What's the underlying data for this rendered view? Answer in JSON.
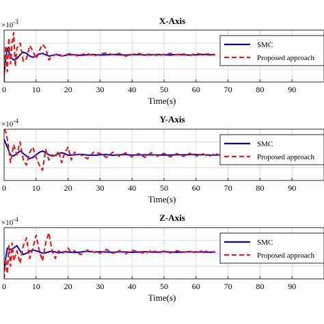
{
  "chart_data": [
    {
      "type": "line",
      "title": "X-Axis",
      "xlabel": "Time(s)",
      "exponent_label": "×10",
      "exponent_power": "-3",
      "xlim": [
        0,
        100
      ],
      "ylim": [
        -1,
        1
      ],
      "xticks": [
        0,
        10,
        20,
        30,
        40,
        50,
        60,
        70,
        80,
        90
      ],
      "grid": true,
      "legend_position": "top-right",
      "series": [
        {
          "name": "SMC",
          "color": "#0000cc",
          "style": "solid",
          "x": [
            0,
            0.5,
            1,
            1.5,
            2,
            3,
            4,
            5,
            6,
            7,
            8,
            9,
            10,
            11,
            12,
            13,
            14,
            15,
            16,
            17,
            18,
            19,
            20,
            22,
            24,
            26,
            28,
            30,
            32,
            34,
            36,
            38,
            40,
            42,
            44,
            46,
            48,
            50,
            52,
            54,
            56,
            58,
            60,
            62,
            64,
            66
          ],
          "y": [
            -0.8,
            -0.1,
            0.3,
            0.15,
            -0.05,
            -0.15,
            -0.1,
            0.05,
            0.15,
            0.1,
            0.0,
            -0.05,
            0.0,
            0.08,
            0.1,
            0.05,
            0.0,
            0.02,
            0.06,
            0.04,
            0.0,
            0.02,
            0.05,
            0.05,
            0.03,
            0.05,
            0.06,
            0.04,
            0.05,
            0.06,
            0.05,
            0.04,
            0.05,
            0.06,
            0.04,
            0.05,
            0.06,
            0.05,
            0.04,
            0.06,
            0.05,
            0.04,
            0.05,
            0.06,
            0.05,
            0.05
          ]
        },
        {
          "name": "Proposed approach",
          "color": "#e31a1c",
          "style": "dashed",
          "x": [
            0,
            0.5,
            1,
            1.5,
            2,
            2.5,
            3,
            3.5,
            4,
            5,
            6,
            7,
            8,
            9,
            10,
            11,
            12,
            13,
            14,
            15,
            16,
            17,
            18,
            19,
            20,
            21,
            22,
            23,
            24,
            26,
            28,
            30,
            32,
            34,
            36,
            38,
            40,
            42,
            44,
            46,
            48,
            50,
            52,
            54,
            56,
            58,
            60,
            62,
            64,
            66
          ],
          "y": [
            -1.0,
            0.4,
            -0.6,
            0.7,
            -0.3,
            0.5,
            0.9,
            -0.4,
            0.3,
            0.5,
            -0.2,
            -0.1,
            0.4,
            0.2,
            -0.1,
            0.2,
            0.45,
            0.3,
            -0.15,
            0.0,
            0.05,
            0.1,
            0.0,
            0.02,
            0.08,
            0.1,
            0.05,
            0.0,
            0.05,
            0.1,
            0.0,
            0.08,
            0.12,
            0.05,
            0.1,
            0.0,
            0.06,
            0.1,
            0.04,
            0.08,
            0.02,
            0.06,
            0.1,
            0.05,
            0.08,
            0.02,
            0.1,
            0.06,
            0.08,
            0.05
          ]
        }
      ]
    },
    {
      "type": "line",
      "title": "Y-Axis",
      "xlabel": "Time(s)",
      "exponent_label": "×10",
      "exponent_power": "-4",
      "xlim": [
        0,
        100
      ],
      "ylim": [
        -1,
        1
      ],
      "xticks": [
        0,
        10,
        20,
        30,
        40,
        50,
        60,
        70,
        80,
        90
      ],
      "grid": true,
      "legend_position": "top-right",
      "series": [
        {
          "name": "SMC",
          "color": "#0000cc",
          "style": "solid",
          "x": [
            0,
            1,
            2,
            3,
            4,
            5,
            6,
            7,
            8,
            9,
            10,
            11,
            12,
            13,
            14,
            15,
            16,
            17,
            18,
            19,
            20,
            22,
            24,
            26,
            28,
            30,
            32,
            34,
            36,
            38,
            40,
            45,
            50,
            55,
            60,
            65,
            70,
            75,
            80,
            85,
            90,
            95,
            100
          ],
          "y": [
            0.6,
            0.3,
            0.0,
            -0.05,
            0.05,
            0.15,
            0.05,
            -0.05,
            -0.15,
            -0.1,
            0.0,
            0.1,
            0.15,
            0.1,
            0.0,
            -0.05,
            -0.02,
            0.05,
            0.08,
            0.05,
            -0.02,
            0.0,
            0.02,
            -0.01,
            -0.02,
            0.0,
            0.01,
            -0.02,
            0.0,
            0.01,
            -0.01,
            0.0,
            -0.01,
            0.0,
            0.01,
            -0.01,
            0.0,
            0.0,
            0.01,
            0.0,
            0.0,
            0.0,
            0.0
          ]
        },
        {
          "name": "Proposed approach",
          "color": "#e31a1c",
          "style": "dashed",
          "x": [
            0,
            0.5,
            1,
            1.5,
            2,
            3,
            4,
            5,
            6,
            7,
            8,
            9,
            10,
            11,
            12,
            13,
            14,
            15,
            16,
            17,
            18,
            19,
            20,
            21,
            22,
            24,
            26,
            28,
            30,
            32,
            34,
            36,
            38,
            40,
            42,
            44,
            46,
            48,
            50,
            52,
            54,
            56,
            58,
            60,
            62,
            64,
            66,
            68,
            70,
            72,
            74,
            76,
            78,
            80,
            82,
            84,
            86,
            88,
            90,
            92,
            94,
            96,
            98,
            100
          ],
          "y": [
            1.0,
            0.9,
            0.6,
            0.2,
            -0.3,
            0.4,
            0.0,
            0.5,
            -0.2,
            -0.4,
            0.1,
            0.3,
            -0.1,
            -0.4,
            -0.6,
            0.2,
            -0.2,
            0.0,
            -0.1,
            0.15,
            -0.3,
            0.1,
            0.3,
            -0.2,
            0.1,
            0.0,
            -0.15,
            0.1,
            0.05,
            -0.1,
            0.1,
            -0.05,
            0.08,
            -0.08,
            0.05,
            -0.1,
            0.08,
            -0.05,
            0.06,
            -0.08,
            0.05,
            -0.06,
            0.06,
            -0.05,
            0.04,
            -0.06,
            0.05,
            -0.04,
            0.04,
            -0.05,
            0.05,
            -0.04,
            0.03,
            -0.04,
            0.04,
            -0.03,
            0.03,
            -0.04,
            0.03,
            -0.03,
            0.03,
            -0.03,
            0.02,
            0.0
          ]
        }
      ]
    },
    {
      "type": "line",
      "title": "Z-Axis",
      "xlabel": "Time(s)",
      "exponent_label": "×10",
      "exponent_power": "-4",
      "xlim": [
        0,
        100
      ],
      "ylim": [
        -1,
        1
      ],
      "xticks": [
        0,
        10,
        20,
        30,
        40,
        50,
        60,
        70,
        80,
        90
      ],
      "grid": true,
      "legend_position": "top-right",
      "series": [
        {
          "name": "SMC",
          "color": "#0000cc",
          "style": "solid",
          "x": [
            0,
            0.5,
            1,
            2,
            3,
            4,
            5,
            6,
            7,
            8,
            9,
            10,
            11,
            12,
            13,
            14,
            15,
            16,
            17,
            18,
            19,
            20,
            22,
            24,
            26,
            28,
            30,
            32,
            34,
            36,
            38,
            40,
            42,
            44,
            46,
            48,
            50,
            52,
            54,
            56,
            58,
            60,
            62,
            64,
            66
          ],
          "y": [
            -0.7,
            -0.2,
            0.2,
            0.15,
            0.2,
            0.3,
            0.1,
            -0.05,
            0.0,
            0.08,
            0.12,
            0.1,
            0.05,
            0.0,
            0.02,
            0.06,
            0.08,
            0.05,
            0.02,
            0.04,
            0.06,
            0.05,
            0.03,
            0.05,
            0.08,
            0.05,
            0.06,
            0.05,
            0.04,
            0.06,
            0.05,
            0.04,
            0.05,
            0.06,
            0.05,
            0.04,
            0.06,
            0.05,
            0.04,
            0.05,
            0.06,
            0.05,
            0.05,
            0.04,
            0.05
          ]
        },
        {
          "name": "Proposed approach",
          "color": "#e31a1c",
          "style": "dashed",
          "x": [
            0,
            0.5,
            1,
            1.5,
            2,
            2.5,
            3,
            4,
            5,
            6,
            7,
            8,
            9,
            10,
            11,
            12,
            13,
            14,
            15,
            16,
            17,
            18,
            19,
            20,
            21,
            22,
            24,
            26,
            28,
            30,
            32,
            34,
            36,
            38,
            40,
            42,
            44,
            46,
            48,
            50,
            52,
            54,
            56,
            58,
            60,
            62,
            64,
            66
          ],
          "y": [
            -1.0,
            -0.2,
            -0.8,
            0.3,
            -0.5,
            0.4,
            -0.3,
            0.1,
            -0.4,
            0.3,
            0.6,
            -0.2,
            0.2,
            0.7,
            0.1,
            -0.3,
            0.4,
            0.8,
            0.1,
            -0.2,
            0.1,
            0.0,
            0.05,
            0.2,
            0.0,
            0.1,
            -0.05,
            0.12,
            0.05,
            0.0,
            0.15,
            0.0,
            0.1,
            -0.02,
            0.12,
            0.05,
            0.0,
            0.1,
            0.05,
            0.08,
            0.02,
            0.1,
            0.04,
            0.08,
            0.02,
            0.1,
            0.05,
            0.06
          ]
        }
      ]
    }
  ]
}
